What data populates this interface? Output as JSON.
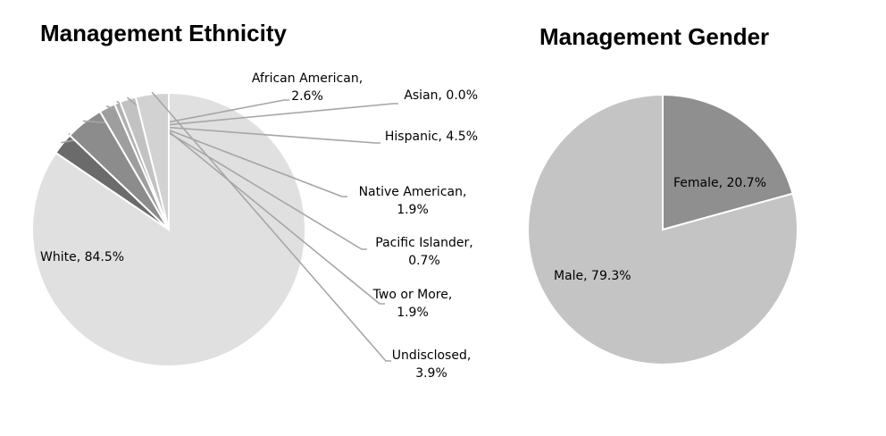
{
  "chart_data": [
    {
      "type": "pie",
      "title": "Management Ethnicity",
      "slices": [
        {
          "name": "White",
          "value": 84.5,
          "color": "#e0e0e0",
          "label_line1": "White, 84.5%",
          "label_line2": ""
        },
        {
          "name": "African American",
          "value": 2.6,
          "color": "#6b6b6b",
          "label_line1": "African American,",
          "label_line2": "2.6%"
        },
        {
          "name": "Asian",
          "value": 0.0,
          "color": "#7f7f7f",
          "label_line1": "Asian, 0.0%",
          "label_line2": ""
        },
        {
          "name": "Hispanic",
          "value": 4.5,
          "color": "#8c8c8c",
          "label_line1": "Hispanic, 4.5%",
          "label_line2": ""
        },
        {
          "name": "Native American",
          "value": 1.9,
          "color": "#9e9e9e",
          "label_line1": "Native American,",
          "label_line2": "1.9%"
        },
        {
          "name": "Pacific Islander",
          "value": 0.7,
          "color": "#b0b0b0",
          "label_line1": "Pacific Islander,",
          "label_line2": "0.7%"
        },
        {
          "name": "Two or More",
          "value": 1.9,
          "color": "#c2c2c2",
          "label_line1": "Two or More,",
          "label_line2": "1.9%"
        },
        {
          "name": "Undisclosed",
          "value": 3.9,
          "color": "#d2d2d2",
          "label_line1": "Undisclosed,",
          "label_line2": "3.9%"
        }
      ]
    },
    {
      "type": "pie",
      "title": "Management Gender",
      "slices": [
        {
          "name": "Female",
          "value": 20.7,
          "color": "#8f8f8f",
          "label_line1": "Female, 20.7%",
          "label_line2": ""
        },
        {
          "name": "Male",
          "value": 79.3,
          "color": "#c4c4c4",
          "label_line1": "Male, 79.3%",
          "label_line2": ""
        }
      ]
    }
  ]
}
